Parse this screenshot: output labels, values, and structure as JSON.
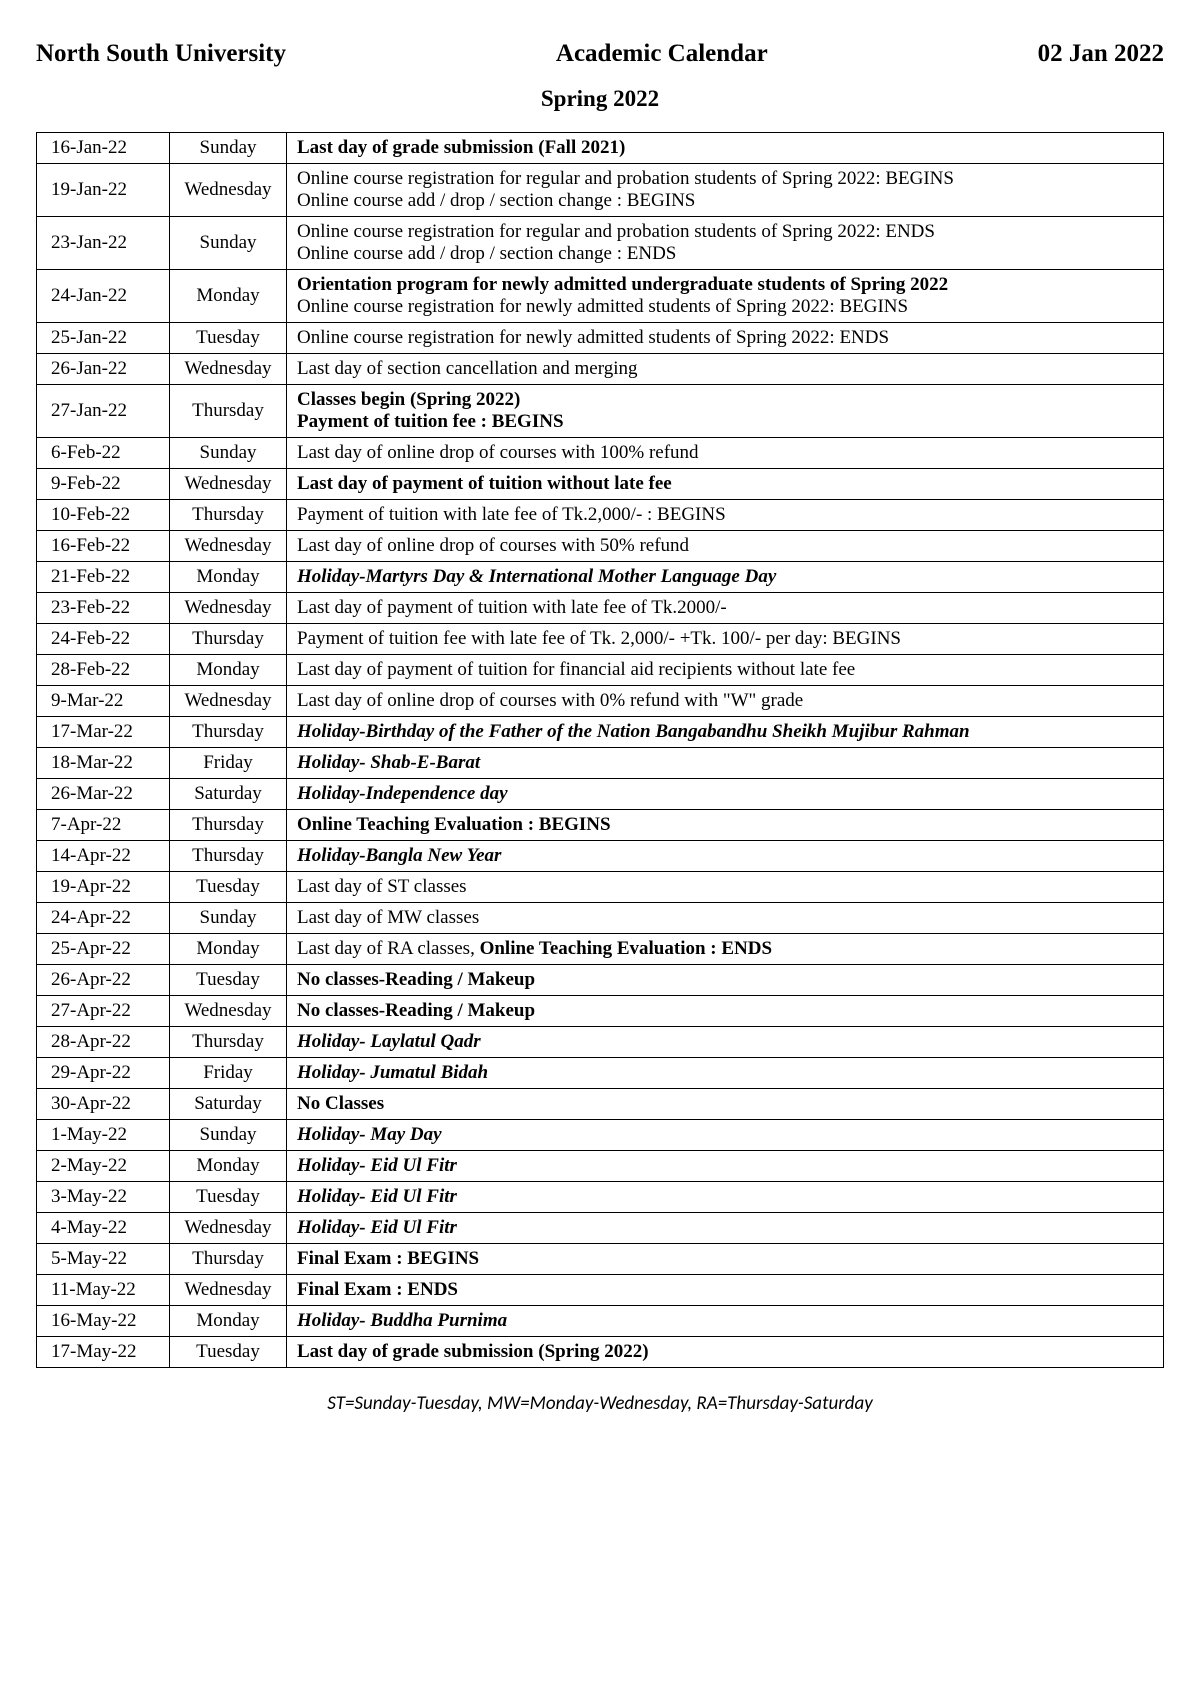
{
  "header": {
    "left": "North South University",
    "center": "Academic Calendar",
    "right": "02 Jan 2022",
    "semester": "Spring 2022"
  },
  "legend": "ST=Sunday-Tuesday, MW=Monday-Wednesday, RA=Thursday-Saturday",
  "table": {
    "columns": [
      "date",
      "day",
      "description"
    ],
    "col_widths": [
      "110px",
      "100px",
      "auto"
    ],
    "border_color": "#000000",
    "font_size": 19,
    "rows": [
      {
        "date": "16-Jan-22",
        "day": "Sunday",
        "segments": [
          {
            "text": "Last day of grade submission (Fall 2021)",
            "bold": true
          }
        ]
      },
      {
        "date": "19-Jan-22",
        "day": "Wednesday",
        "segments": [
          {
            "text": "Online course registration for regular and probation students of Spring 2022: BEGINS"
          },
          {
            "br": true
          },
          {
            "text": "Online course add / drop / section change : BEGINS"
          }
        ]
      },
      {
        "date": "23-Jan-22",
        "day": "Sunday",
        "segments": [
          {
            "text": "Online course registration for regular and probation students of Spring 2022: ENDS"
          },
          {
            "br": true
          },
          {
            "text": "Online course add / drop / section change : ENDS"
          }
        ]
      },
      {
        "date": "24-Jan-22",
        "day": "Monday",
        "segments": [
          {
            "text": "Orientation program for newly admitted  undergraduate students of Spring 2022",
            "bold": true
          },
          {
            "br": true
          },
          {
            "text": "Online course registration for newly admitted students of Spring 2022: BEGINS"
          }
        ]
      },
      {
        "date": "25-Jan-22",
        "day": "Tuesday",
        "segments": [
          {
            "text": "Online course registration for newly admitted students of Spring 2022: ENDS"
          }
        ]
      },
      {
        "date": "26-Jan-22",
        "day": "Wednesday",
        "segments": [
          {
            "text": " Last day of section cancellation and merging"
          }
        ]
      },
      {
        "date": "27-Jan-22",
        "day": "Thursday",
        "segments": [
          {
            "text": "Classes begin (Spring 2022)",
            "bold": true
          },
          {
            "br": true
          },
          {
            "text": "Payment of tuition fee : BEGINS",
            "bold": true
          }
        ]
      },
      {
        "date": "6-Feb-22",
        "day": "Sunday",
        "segments": [
          {
            "text": "Last day of online drop of courses with 100% refund"
          }
        ]
      },
      {
        "date": "9-Feb-22",
        "day": "Wednesday",
        "segments": [
          {
            "text": "Last day of payment of tuition without late fee",
            "bold": true
          }
        ]
      },
      {
        "date": "10-Feb-22",
        "day": "Thursday",
        "segments": [
          {
            "text": "Payment of tuition with late fee of Tk.2,000/- : BEGINS"
          }
        ]
      },
      {
        "date": "16-Feb-22",
        "day": "Wednesday",
        "segments": [
          {
            "text": "Last day of online drop of courses with 50% refund"
          }
        ]
      },
      {
        "date": "21-Feb-22",
        "day": "Monday",
        "segments": [
          {
            "text": "Holiday-Martyrs Day & International Mother Language Day",
            "bold": true,
            "italic": true
          }
        ]
      },
      {
        "date": "23-Feb-22",
        "day": "Wednesday",
        "segments": [
          {
            "text": "Last day of payment of tuition with late fee of Tk.2000/-"
          }
        ]
      },
      {
        "date": "24-Feb-22",
        "day": "Thursday",
        "segments": [
          {
            "text": "Payment of tuition fee with late fee of Tk. 2,000/- +Tk. 100/- per day: BEGINS"
          }
        ]
      },
      {
        "date": "28-Feb-22",
        "day": "Monday",
        "segments": [
          {
            "text": "Last day of payment of tuition for financial aid recipients without late fee"
          }
        ]
      },
      {
        "date": "9-Mar-22",
        "day": "Wednesday",
        "segments": [
          {
            "text": "Last day of online drop of courses with 0% refund with \"W\" grade"
          }
        ]
      },
      {
        "date": "17-Mar-22",
        "day": "Thursday",
        "segments": [
          {
            "text": "Holiday-Birthday of the Father of the Nation Bangabandhu Sheikh Mujibur Rahman",
            "bold": true,
            "italic": true
          }
        ]
      },
      {
        "date": "18-Mar-22",
        "day": "Friday",
        "segments": [
          {
            "text": "Holiday- Shab-E-Barat",
            "bold": true,
            "italic": true
          }
        ]
      },
      {
        "date": "26-Mar-22",
        "day": "Saturday",
        "segments": [
          {
            "text": "Holiday-Independence day",
            "bold": true,
            "italic": true
          }
        ]
      },
      {
        "date": "7-Apr-22",
        "day": "Thursday",
        "segments": [
          {
            "text": "Online Teaching Evaluation : BEGINS",
            "bold": true
          }
        ]
      },
      {
        "date": "14-Apr-22",
        "day": "Thursday",
        "segments": [
          {
            "text": "Holiday-Bangla New Year",
            "bold": true,
            "italic": true
          }
        ]
      },
      {
        "date": "19-Apr-22",
        "day": "Tuesday",
        "segments": [
          {
            "text": "Last day of ST classes"
          }
        ]
      },
      {
        "date": "24-Apr-22",
        "day": "Sunday",
        "segments": [
          {
            "text": "Last day of MW classes"
          }
        ]
      },
      {
        "date": "25-Apr-22",
        "day": "Monday",
        "segments": [
          {
            "text": "Last day of RA classes, "
          },
          {
            "text": "Online Teaching Evaluation : ENDS",
            "bold": true
          }
        ]
      },
      {
        "date": "26-Apr-22",
        "day": "Tuesday",
        "segments": [
          {
            "text": "No classes-Reading / Makeup",
            "bold": true
          }
        ]
      },
      {
        "date": "27-Apr-22",
        "day": "Wednesday",
        "segments": [
          {
            "text": "No classes-Reading / Makeup",
            "bold": true
          }
        ]
      },
      {
        "date": "28-Apr-22",
        "day": "Thursday",
        "segments": [
          {
            "text": "Holiday- Laylatul Qadr",
            "bold": true,
            "italic": true
          }
        ]
      },
      {
        "date": "29-Apr-22",
        "day": "Friday",
        "segments": [
          {
            "text": "Holiday- Jumatul Bidah",
            "bold": true,
            "italic": true
          }
        ]
      },
      {
        "date": "30-Apr-22",
        "day": "Saturday",
        "segments": [
          {
            "text": "No Classes",
            "bold": true
          }
        ]
      },
      {
        "date": "1-May-22",
        "day": "Sunday",
        "segments": [
          {
            "text": "Holiday- May Day",
            "bold": true,
            "italic": true
          }
        ]
      },
      {
        "date": "2-May-22",
        "day": "Monday",
        "segments": [
          {
            "text": "Holiday- Eid Ul Fitr",
            "bold": true,
            "italic": true
          }
        ]
      },
      {
        "date": "3-May-22",
        "day": "Tuesday",
        "segments": [
          {
            "text": "Holiday- Eid Ul Fitr",
            "bold": true,
            "italic": true
          }
        ]
      },
      {
        "date": "4-May-22",
        "day": "Wednesday",
        "segments": [
          {
            "text": "Holiday- Eid Ul Fitr",
            "bold": true,
            "italic": true
          }
        ]
      },
      {
        "date": "5-May-22",
        "day": "Thursday",
        "segments": [
          {
            "text": "Final Exam : BEGINS",
            "bold": true
          }
        ]
      },
      {
        "date": "11-May-22",
        "day": "Wednesday",
        "segments": [
          {
            "text": "Final Exam : ENDS",
            "bold": true
          }
        ]
      },
      {
        "date": "16-May-22",
        "day": "Monday",
        "segments": [
          {
            "text": "Holiday- Buddha Purnima",
            "bold": true,
            "italic": true
          }
        ]
      },
      {
        "date": "17-May-22",
        "day": "Tuesday",
        "segments": [
          {
            "text": "Last day of grade submission (Spring 2022)",
            "bold": true
          }
        ]
      }
    ]
  }
}
